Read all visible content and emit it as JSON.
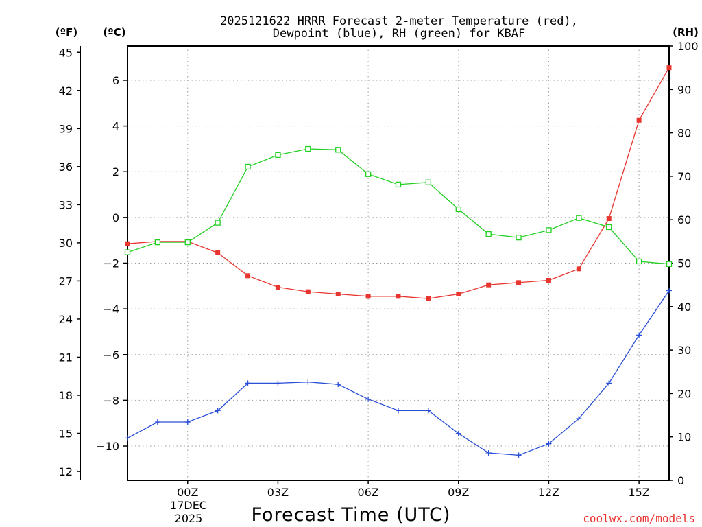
{
  "chart_data": {
    "type": "line",
    "title_line1": "2025121622 HRRR Forecast 2-meter Temperature (red),",
    "title_line2": "Dewpoint (blue), RH (green) for KBAF",
    "xlabel": "Forecast Time (UTC)",
    "units": {
      "fahrenheit": "(ºF)",
      "celsius": "(ºC)",
      "rh": "(RH)"
    },
    "x_hours": [
      -2,
      -1,
      0,
      1,
      2,
      3,
      4,
      5,
      6,
      7,
      8,
      9,
      10,
      11,
      12,
      13,
      14,
      15,
      16
    ],
    "x_range": [
      -2,
      16
    ],
    "x_ticks": [
      {
        "hour": 0,
        "label": "00Z"
      },
      {
        "hour": 3,
        "label": "03Z"
      },
      {
        "hour": 6,
        "label": "06Z"
      },
      {
        "hour": 9,
        "label": "09Z"
      },
      {
        "hour": 12,
        "label": "12Z"
      },
      {
        "hour": 15,
        "label": "15Z"
      }
    ],
    "date_label_line1": "17DEC",
    "date_label_line2": "2025",
    "celsius_range": [
      -11.5,
      7.5
    ],
    "celsius_ticks": [
      "6",
      "4",
      "2",
      "0",
      "−2",
      "−4",
      "−6",
      "−8",
      "−10"
    ],
    "celsius_tick_values": [
      6,
      4,
      2,
      0,
      -2,
      -4,
      -6,
      -8,
      -10
    ],
    "fahrenheit_ticks": [
      "45",
      "42",
      "39",
      "36",
      "33",
      "30",
      "27",
      "24",
      "21",
      "18",
      "15",
      "12"
    ],
    "fahrenheit_tick_values": [
      45,
      42,
      39,
      36,
      33,
      30,
      27,
      24,
      21,
      18,
      15,
      12
    ],
    "rh_range": [
      0,
      100
    ],
    "rh_ticks": [
      "100",
      "90",
      "80",
      "70",
      "60",
      "50",
      "40",
      "30",
      "20",
      "10",
      "0"
    ],
    "rh_tick_values": [
      100,
      90,
      80,
      70,
      60,
      50,
      40,
      30,
      20,
      10,
      0
    ],
    "series": [
      {
        "name": "Temperature",
        "axis": "celsius",
        "color": "#e8352f",
        "marker": "filled-square",
        "values": [
          -1.15,
          -1.05,
          -1.05,
          -1.55,
          -2.55,
          -3.05,
          -3.25,
          -3.35,
          -3.45,
          -3.45,
          -3.55,
          -3.35,
          -2.95,
          -2.85,
          -2.75,
          -2.25,
          -0.05,
          4.25,
          6.55
        ]
      },
      {
        "name": "Dewpoint",
        "axis": "celsius",
        "color": "#2a4fd8",
        "marker": "plus",
        "values": [
          -9.65,
          -8.95,
          -8.95,
          -8.45,
          -7.25,
          -7.25,
          -7.2,
          -7.3,
          -7.95,
          -8.45,
          -8.45,
          -9.45,
          -10.3,
          -10.4,
          -9.9,
          -8.8,
          -7.25,
          -5.15,
          -3.2
        ]
      },
      {
        "name": "RH",
        "axis": "rh",
        "color": "#22d022",
        "marker": "open-square",
        "values": [
          52.5,
          54.8,
          54.8,
          59.3,
          72.2,
          74.9,
          76.3,
          76.1,
          70.5,
          68.1,
          68.6,
          62.4,
          56.7,
          55.9,
          57.6,
          60.4,
          58.3,
          50.4,
          49.8
        ]
      }
    ],
    "credit": "coolwx.com/models"
  }
}
